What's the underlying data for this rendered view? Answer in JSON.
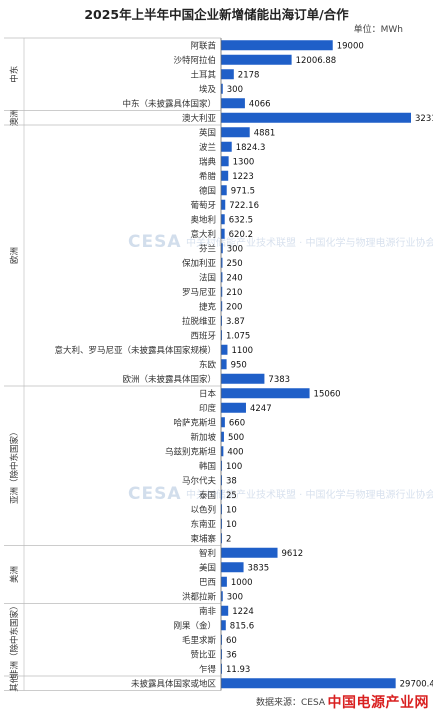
{
  "title": "2025年上半年中国企业新增储能出海订单/合作",
  "unit": "单位：MWh",
  "source": "数据来源：CESA",
  "watermark": "中国电源产业网",
  "cesa_watermark": {
    "logo": "CESA",
    "text": "中关村储能产业技术联盟 · 中国化学与物理电源行业协会储能应用分会"
  },
  "chart_data": {
    "type": "bar",
    "orientation": "horizontal",
    "title": "2025年上半年中国企业新增储能出海订单/合作",
    "unit": "MWh",
    "bar_color": "#1f5fc8",
    "groups": [
      {
        "name": "中东",
        "rows": [
          {
            "label": "阿联酋",
            "value": 19000,
            "display": "19000"
          },
          {
            "label": "沙特阿拉伯",
            "value": 12006.88,
            "display": "12006.88"
          },
          {
            "label": "土耳其",
            "value": 2178,
            "display": "2178"
          },
          {
            "label": "埃及",
            "value": 300,
            "display": "300"
          },
          {
            "label": "中东（未披露具体国家）",
            "value": 4066,
            "display": "4066"
          }
        ]
      },
      {
        "name": "澳洲",
        "rows": [
          {
            "label": "澳大利亚",
            "value": 32310,
            "display": "32310"
          }
        ]
      },
      {
        "name": "欧洲",
        "rows": [
          {
            "label": "英国",
            "value": 4881,
            "display": "4881"
          },
          {
            "label": "波兰",
            "value": 1824.3,
            "display": "1824.3"
          },
          {
            "label": "瑞典",
            "value": 1300,
            "display": "1300"
          },
          {
            "label": "希腊",
            "value": 1223,
            "display": "1223"
          },
          {
            "label": "德国",
            "value": 971.5,
            "display": "971.5"
          },
          {
            "label": "葡萄牙",
            "value": 722.16,
            "display": "722.16"
          },
          {
            "label": "奥地利",
            "value": 632.5,
            "display": "632.5"
          },
          {
            "label": "意大利",
            "value": 620.2,
            "display": "620.2"
          },
          {
            "label": "芬兰",
            "value": 300,
            "display": "300"
          },
          {
            "label": "保加利亚",
            "value": 250,
            "display": "250"
          },
          {
            "label": "法国",
            "value": 240,
            "display": "240"
          },
          {
            "label": "罗马尼亚",
            "value": 210,
            "display": "210"
          },
          {
            "label": "捷克",
            "value": 200,
            "display": "200"
          },
          {
            "label": "拉脱维亚",
            "value": 3.87,
            "display": "3.87"
          },
          {
            "label": "西班牙",
            "value": 1.075,
            "display": "1.075"
          },
          {
            "label": "意大利、罗马尼亚（未披露具体国家规模）",
            "value": 1100,
            "display": "1100"
          },
          {
            "label": "东欧",
            "value": 950,
            "display": "950"
          },
          {
            "label": "欧洲（未披露具体国家）",
            "value": 7383,
            "display": "7383"
          }
        ]
      },
      {
        "name": "亚洲（除中东国家）",
        "rows": [
          {
            "label": "日本",
            "value": 15060,
            "display": "15060"
          },
          {
            "label": "印度",
            "value": 4247,
            "display": "4247"
          },
          {
            "label": "哈萨克斯坦",
            "value": 660,
            "display": "660"
          },
          {
            "label": "新加坡",
            "value": 500,
            "display": "500"
          },
          {
            "label": "乌兹别克斯坦",
            "value": 400,
            "display": "400"
          },
          {
            "label": "韩国",
            "value": 100,
            "display": "100"
          },
          {
            "label": "马尔代夫",
            "value": 38,
            "display": "38"
          },
          {
            "label": "泰国",
            "value": 25,
            "display": "25"
          },
          {
            "label": "以色列",
            "value": 10,
            "display": "10"
          },
          {
            "label": "东南亚",
            "value": 10,
            "display": "10"
          },
          {
            "label": "柬埔寨",
            "value": 2,
            "display": "2"
          }
        ]
      },
      {
        "name": "美洲",
        "rows": [
          {
            "label": "智利",
            "value": 9612,
            "display": "9612"
          },
          {
            "label": "美国",
            "value": 3835,
            "display": "3835"
          },
          {
            "label": "巴西",
            "value": 1000,
            "display": "1000"
          },
          {
            "label": "洪都拉斯",
            "value": 300,
            "display": "300"
          }
        ]
      },
      {
        "name": "非洲（除中东国家）",
        "rows": [
          {
            "label": "南非",
            "value": 1224,
            "display": "1224"
          },
          {
            "label": "刚果（金）",
            "value": 815.6,
            "display": "815.6"
          },
          {
            "label": "毛里求斯",
            "value": 60,
            "display": "60"
          },
          {
            "label": "赞比亚",
            "value": 36,
            "display": "36"
          },
          {
            "label": "乍得",
            "value": 11.93,
            "display": "11.93"
          }
        ]
      },
      {
        "name": "其他",
        "rows": [
          {
            "label": "未披露具体国家或地区",
            "value": 29700.482,
            "display": "29700.482"
          }
        ]
      }
    ]
  }
}
